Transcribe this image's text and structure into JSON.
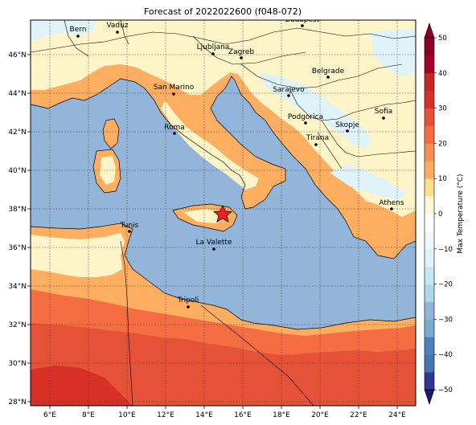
{
  "title": "Forecast of 2022022600 (f048-072)",
  "lon_ticks": [
    "6°E",
    "8°E",
    "10°E",
    "12°E",
    "14°E",
    "16°E",
    "18°E",
    "20°E",
    "22°E",
    "24°E"
  ],
  "lat_ticks": [
    "46°N",
    "44°N",
    "42°N",
    "40°N",
    "38°N",
    "36°N",
    "34°N",
    "32°N",
    "30°N",
    "28°N"
  ],
  "cities": [
    {
      "name": "Bern"
    },
    {
      "name": "Vaduz"
    },
    {
      "name": "Budapest"
    },
    {
      "name": "Ljubljana"
    },
    {
      "name": "Zagreb"
    },
    {
      "name": "Belgrade"
    },
    {
      "name": "San Marino"
    },
    {
      "name": "Sarajevo"
    },
    {
      "name": "Sofia"
    },
    {
      "name": "Podgorica"
    },
    {
      "name": "Skopje"
    },
    {
      "name": "Roma"
    },
    {
      "name": "Tirana"
    },
    {
      "name": "Athens"
    },
    {
      "name": "Tunis"
    },
    {
      "name": "La Valette"
    },
    {
      "name": "Tripoli"
    }
  ],
  "colorbar": {
    "label": "Max Temperature (°C)",
    "ticks": [
      "50",
      "40",
      "30",
      "20",
      "10",
      "0",
      "−10",
      "−20",
      "−30",
      "−40",
      "−50"
    ],
    "range": [
      -50,
      50
    ],
    "step": 5,
    "colors": [
      "#313695",
      "#4575b4",
      "#4e80b9",
      "#74add1",
      "#92b5d9",
      "#abd9e9",
      "#c6e6f1",
      "#e0f3f8",
      "#eef8fb",
      "#ffffff",
      "#fff7d6",
      "#fee090",
      "#fdae61",
      "#f88e53",
      "#f46d43",
      "#e55237",
      "#d73027",
      "#c3282b",
      "#a50026",
      "#8b0025"
    ]
  },
  "colors": {
    "sea": "#92b5d9",
    "land_mild": "#fdf5c7",
    "land_warm": "#fdae61",
    "land_hot": "#f46d43",
    "land_hotter": "#e55237",
    "land_cold": "#e0f3f8",
    "star": "#ee2222"
  }
}
